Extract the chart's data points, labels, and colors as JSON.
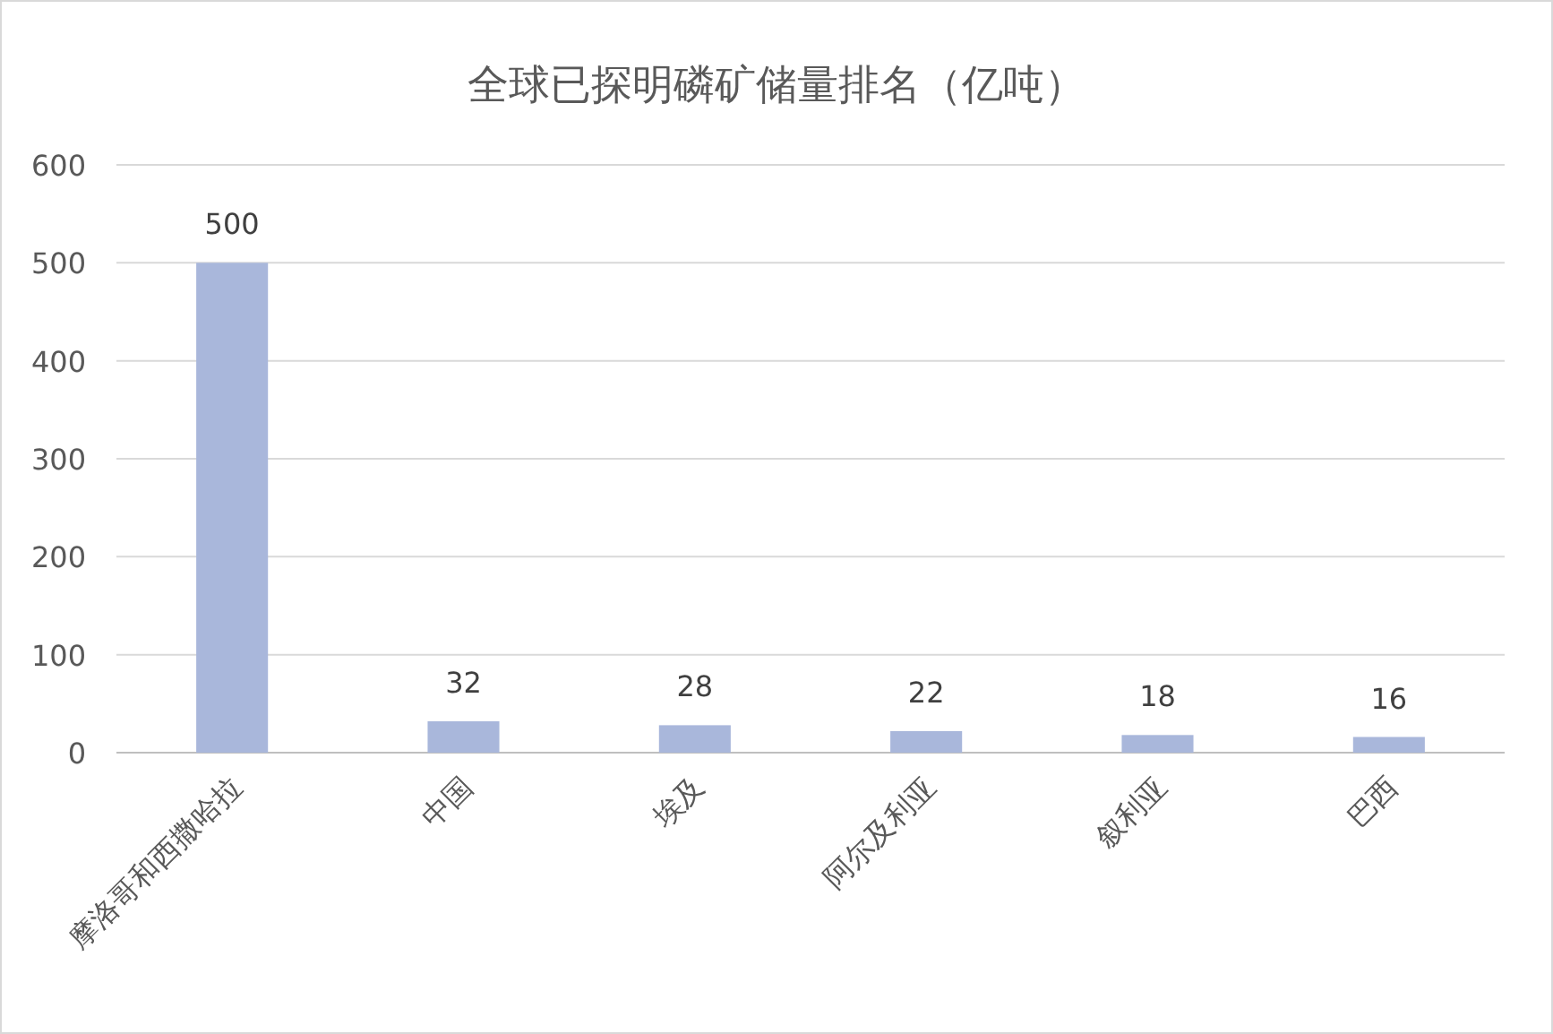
{
  "chart_data": {
    "type": "bar",
    "title": "全球已探明磷矿储量排名（亿吨）",
    "categories": [
      "摩洛哥和西撒哈拉",
      "中国",
      "埃及",
      "阿尔及利亚",
      "叙利亚",
      "巴西"
    ],
    "values": [
      500,
      32,
      28,
      22,
      18,
      16
    ],
    "color": "#a9b7db",
    "ylim": [
      0,
      600
    ],
    "yticks": [
      0,
      100,
      200,
      300,
      400,
      500,
      600
    ],
    "grid": "y",
    "data_labels": true
  }
}
